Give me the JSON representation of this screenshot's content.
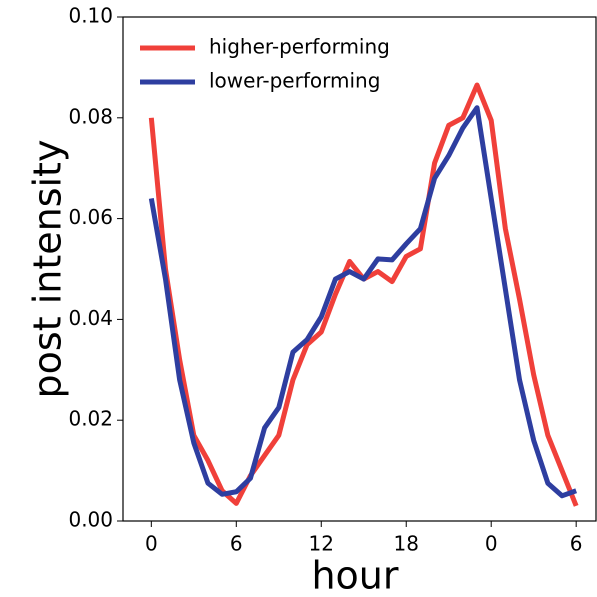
{
  "chart_data": {
    "type": "line",
    "xlabel": "hour",
    "ylabel": "post intensity",
    "x": [
      0,
      1,
      2,
      3,
      4,
      5,
      6,
      7,
      8,
      9,
      10,
      11,
      12,
      13,
      14,
      15,
      16,
      17,
      18,
      19,
      20,
      21,
      22,
      23,
      24,
      25,
      26,
      27,
      28,
      29,
      30
    ],
    "series": [
      {
        "name": "higher-performing",
        "color": "#f0403a",
        "values": [
          0.08,
          0.05,
          0.032,
          0.017,
          0.012,
          0.006,
          0.0035,
          0.009,
          0.013,
          0.017,
          0.028,
          0.035,
          0.0375,
          0.045,
          0.0515,
          0.048,
          0.0495,
          0.0475,
          0.0525,
          0.054,
          0.071,
          0.0785,
          0.08,
          0.0865,
          0.0795,
          0.058,
          0.044,
          0.029,
          0.017,
          0.01,
          0.003
        ]
      },
      {
        "name": "lower-performing",
        "color": "#2e3ea0",
        "values": [
          0.064,
          0.048,
          0.028,
          0.0155,
          0.0075,
          0.0053,
          0.0058,
          0.0085,
          0.0185,
          0.0225,
          0.0335,
          0.036,
          0.0405,
          0.048,
          0.0495,
          0.048,
          0.052,
          0.0518,
          0.055,
          0.058,
          0.068,
          0.0725,
          0.078,
          0.082,
          0.064,
          0.046,
          0.028,
          0.016,
          0.0075,
          0.005,
          0.006
        ]
      }
    ],
    "xlim": [
      -2,
      31.4
    ],
    "ylim": [
      0,
      0.1
    ],
    "xticks": [
      0,
      6,
      12,
      18,
      {
        "value": 24,
        "label": "0"
      },
      {
        "value": 30,
        "label": "6"
      }
    ],
    "yticks": [
      {
        "value": 0,
        "label": "0.00"
      },
      {
        "value": 0.02,
        "label": "0.02"
      },
      {
        "value": 0.04,
        "label": "0.04"
      },
      {
        "value": 0.06,
        "label": "0.06"
      },
      {
        "value": 0.08,
        "label": "0.08"
      },
      {
        "value": 0.1,
        "label": "0.10"
      }
    ],
    "legend": "upper left"
  }
}
